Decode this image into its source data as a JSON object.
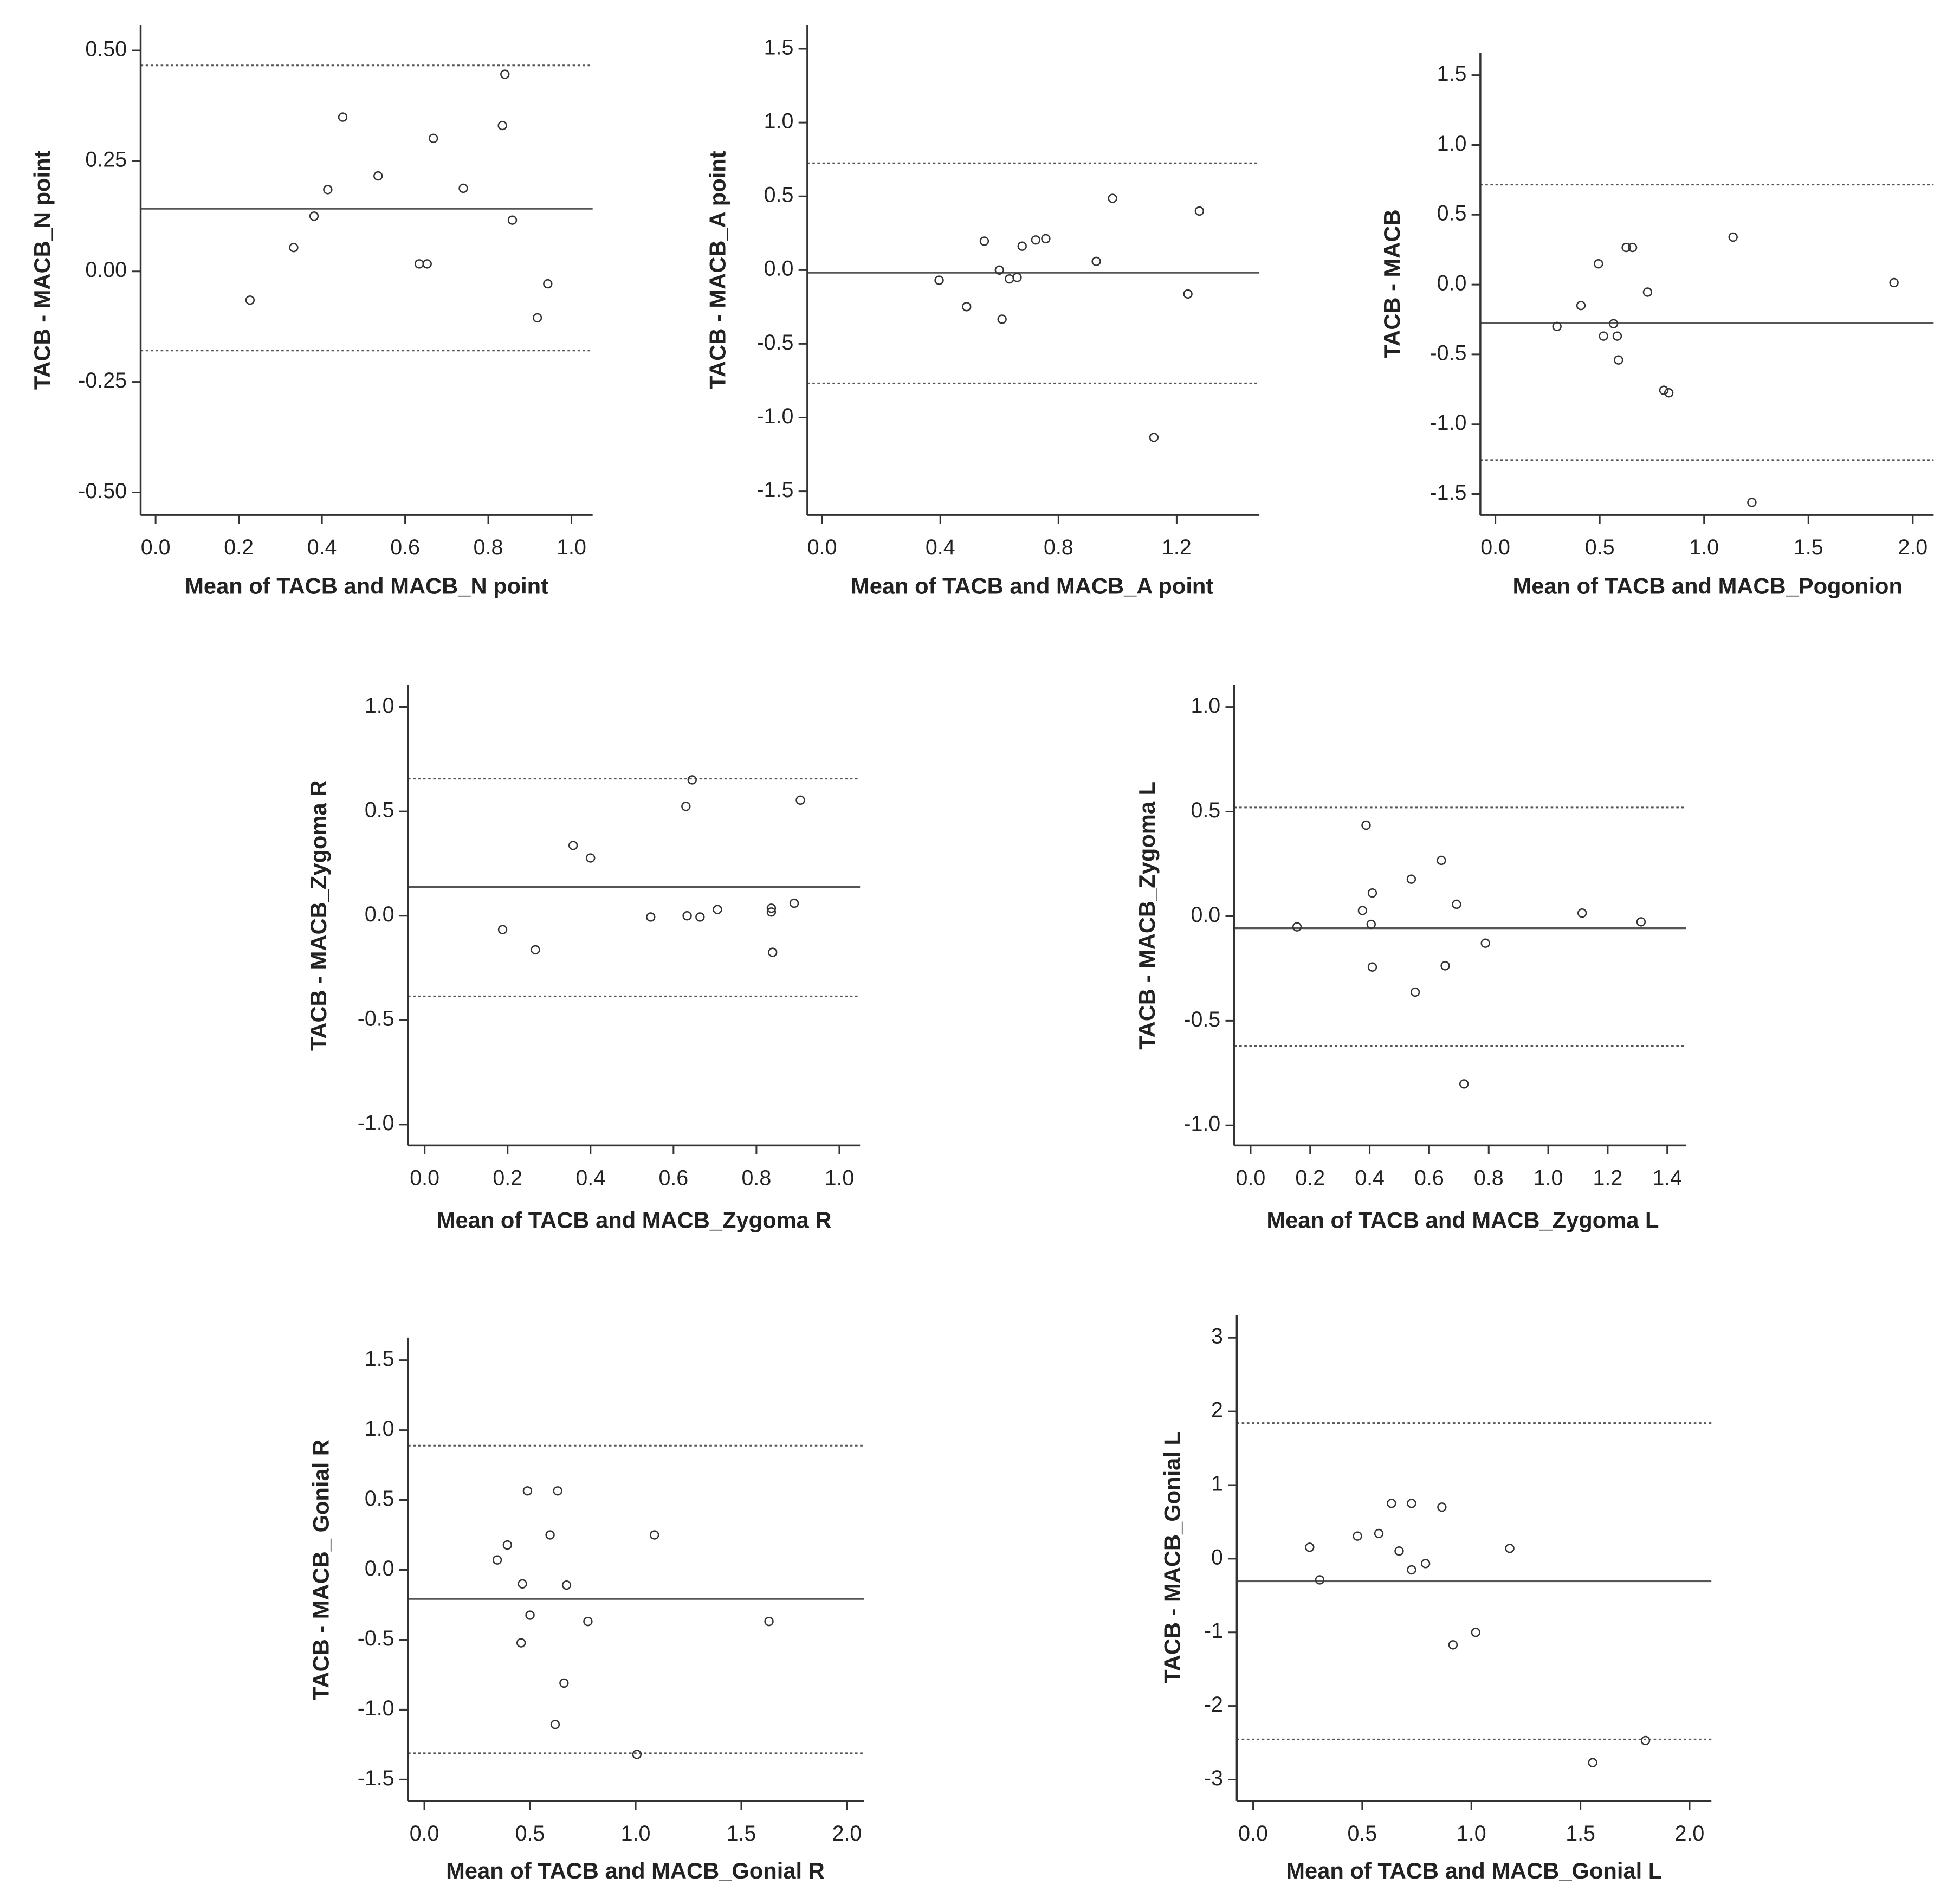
{
  "chart_data": [
    {
      "type": "scatter",
      "x_label": "Mean of TACB and MACB_N point",
      "y_label": "TACB - MACB_N point",
      "marker": "open-circle",
      "color": "#333333",
      "x": [
        0.227,
        0.332,
        0.381,
        0.414,
        0.45,
        0.535,
        0.634,
        0.653,
        0.668,
        0.74,
        0.834,
        0.84,
        0.858,
        0.918,
        0.943
      ],
      "y": [
        -0.065,
        0.054,
        0.125,
        0.185,
        0.349,
        0.216,
        0.017,
        0.017,
        0.301,
        0.188,
        0.33,
        0.446,
        0.116,
        -0.105,
        -0.028
      ],
      "xlim": [
        -0.036,
        1.051
      ],
      "ylim": [
        -0.551,
        0.557
      ],
      "xticks": [
        {
          "value": 0,
          "label": "0.0"
        },
        0.2,
        0.4,
        0.6,
        0.8,
        {
          "value": 1,
          "label": "1.0"
        }
      ],
      "yticks": [
        {
          "value": -0.5,
          "label": "-0.50"
        },
        -0.25,
        {
          "value": 0,
          "label": "0.00"
        },
        0.25,
        {
          "value": 0.5,
          "label": "0.50"
        }
      ],
      "reference_lines": [
        {
          "value": 0.142,
          "style": "solid"
        },
        {
          "value": 0.466,
          "style": "dotted"
        },
        {
          "value": -0.179,
          "style": "dotted"
        }
      ]
    },
    {
      "type": "scatter",
      "x_label": "Mean of TACB and MACB_A point",
      "y_label": "TACB - MACB_A point",
      "marker": "open-circle",
      "color": "#333333",
      "x": [
        0.396,
        0.489,
        0.549,
        0.6,
        0.609,
        0.634,
        0.66,
        0.677,
        0.723,
        0.757,
        0.928,
        0.983,
        1.123,
        1.238,
        1.277
      ],
      "y": [
        -0.069,
        -0.248,
        0.196,
        0.0,
        -0.333,
        -0.06,
        -0.05,
        0.162,
        0.204,
        0.213,
        0.059,
        0.486,
        -1.134,
        -0.162,
        0.4
      ],
      "xlim": [
        -0.05,
        1.48
      ],
      "ylim": [
        -1.66,
        1.66
      ],
      "xticks": [
        {
          "value": 0,
          "label": "0.0"
        },
        0.4,
        0.8,
        1.2
      ],
      "yticks": [
        -1.5,
        {
          "value": -1,
          "label": "-1.0"
        },
        -0.5,
        {
          "value": 0,
          "label": "0.0"
        },
        0.5,
        {
          "value": 1,
          "label": "1.0"
        },
        1.5
      ],
      "reference_lines": [
        {
          "value": -0.017,
          "style": "solid"
        },
        {
          "value": 0.724,
          "style": "dotted"
        },
        {
          "value": -0.768,
          "style": "dotted"
        }
      ]
    },
    {
      "type": "scatter",
      "x_label": "Mean of TACB and MACB_Pogonion",
      "y_label": "TACB - MACB",
      "marker": "open-circle",
      "color": "#333333",
      "x": [
        0.295,
        0.41,
        0.494,
        0.518,
        0.566,
        0.584,
        0.59,
        0.627,
        0.657,
        0.729,
        0.807,
        0.831,
        1.139,
        1.229,
        1.91
      ],
      "y": [
        -0.3,
        -0.15,
        0.149,
        -0.369,
        -0.28,
        -0.369,
        -0.54,
        0.266,
        0.266,
        -0.054,
        -0.757,
        -0.775,
        0.34,
        -1.56,
        0.014
      ],
      "xlim": [
        -0.072,
        2.1
      ],
      "ylim": [
        -1.65,
        1.66
      ],
      "xticks": [
        {
          "value": 0,
          "label": "0.0"
        },
        0.5,
        {
          "value": 1,
          "label": "1.0"
        },
        1.5,
        {
          "value": 2,
          "label": "2.0"
        }
      ],
      "yticks": [
        -1.5,
        {
          "value": -1,
          "label": "-1.0"
        },
        -0.5,
        {
          "value": 0,
          "label": "0.0"
        },
        0.5,
        {
          "value": 1,
          "label": "1.0"
        },
        1.5
      ],
      "reference_lines": [
        {
          "value": -0.275,
          "style": "solid"
        },
        {
          "value": 0.716,
          "style": "dotted"
        },
        {
          "value": -1.257,
          "style": "dotted"
        }
      ]
    },
    {
      "type": "scatter",
      "x_label": "Mean of TACB and MACB_Zygoma R",
      "y_label": "TACB - MACB_Zygoma R",
      "marker": "open-circle",
      "color": "#333333",
      "x": [
        0.188,
        0.267,
        0.358,
        0.4,
        0.545,
        0.63,
        0.645,
        0.633,
        0.664,
        0.706,
        0.836,
        0.836,
        0.839,
        0.891,
        0.906
      ],
      "y": [
        -0.066,
        -0.163,
        0.337,
        0.277,
        -0.006,
        0.524,
        0.651,
        0.0,
        -0.006,
        0.03,
        0.036,
        0.018,
        -0.175,
        0.06,
        0.554
      ],
      "xlim": [
        -0.04,
        1.05
      ],
      "ylim": [
        -1.1,
        1.108
      ],
      "xticks": [
        {
          "value": 0,
          "label": "0.0"
        },
        0.2,
        0.4,
        0.6,
        0.8,
        {
          "value": 1,
          "label": "1.0"
        }
      ],
      "yticks": [
        {
          "value": -1,
          "label": "-1.0"
        },
        -0.5,
        {
          "value": 0,
          "label": "0.0"
        },
        0.5,
        {
          "value": 1,
          "label": "1.0"
        }
      ],
      "reference_lines": [
        {
          "value": 0.139,
          "style": "solid"
        },
        {
          "value": 0.657,
          "style": "dotted"
        },
        {
          "value": -0.386,
          "style": "dotted"
        }
      ]
    },
    {
      "type": "scatter",
      "x_label": "Mean of TACB and MACB_Zygoma L",
      "y_label": "TACB - MACB_Zygoma L",
      "marker": "open-circle",
      "color": "#333333",
      "x": [
        0.156,
        0.376,
        0.388,
        0.409,
        0.405,
        0.409,
        0.54,
        0.553,
        0.641,
        0.654,
        0.692,
        0.717,
        0.789,
        1.114,
        1.312
      ],
      "y": [
        -0.051,
        0.027,
        0.435,
        0.111,
        -0.039,
        -0.243,
        0.177,
        -0.363,
        0.267,
        -0.237,
        0.057,
        -0.802,
        -0.129,
        0.015,
        -0.027
      ],
      "xlim": [
        -0.055,
        1.464
      ],
      "ylim": [
        -1.096,
        1.108
      ],
      "xticks": [
        {
          "value": 0,
          "label": "0.0"
        },
        0.2,
        0.4,
        0.6,
        0.8,
        {
          "value": 1,
          "label": "1.0"
        },
        1.2,
        1.4
      ],
      "yticks": [
        {
          "value": -1,
          "label": "-1.0"
        },
        -0.5,
        {
          "value": 0,
          "label": "0.0"
        },
        0.5,
        {
          "value": 1,
          "label": "1.0"
        }
      ],
      "reference_lines": [
        {
          "value": -0.057,
          "style": "solid"
        },
        {
          "value": 0.52,
          "style": "dotted"
        },
        {
          "value": -0.622,
          "style": "dotted"
        }
      ]
    },
    {
      "type": "scatter",
      "x_label": "Mean of TACB and MACB_Gonial R",
      "y_label": "TACB - MACB_ Gonial R",
      "marker": "open-circle",
      "color": "#333333",
      "x": [
        0.345,
        0.393,
        0.464,
        0.488,
        0.5,
        0.458,
        0.595,
        0.631,
        0.619,
        0.661,
        0.673,
        0.774,
        1.006,
        1.089,
        1.631
      ],
      "y": [
        0.071,
        0.178,
        -0.1,
        0.565,
        -0.324,
        -0.522,
        0.25,
        0.565,
        -1.106,
        -0.81,
        -0.109,
        -0.369,
        -1.32,
        0.25,
        -0.369
      ],
      "xlim": [
        -0.077,
        2.08
      ],
      "ylim": [
        -1.653,
        1.662
      ],
      "xticks": [
        {
          "value": 0,
          "label": "0.0"
        },
        0.5,
        {
          "value": 1,
          "label": "1.0"
        },
        1.5,
        {
          "value": 2,
          "label": "2.0"
        }
      ],
      "yticks": [
        -1.5,
        {
          "value": -1,
          "label": "-1.0"
        },
        -0.5,
        {
          "value": 0,
          "label": "0.0"
        },
        0.5,
        {
          "value": 1,
          "label": "1.0"
        },
        1.5
      ],
      "reference_lines": [
        {
          "value": -0.207,
          "style": "solid"
        },
        {
          "value": 0.889,
          "style": "dotted"
        },
        {
          "value": -1.312,
          "style": "dotted"
        }
      ]
    },
    {
      "type": "scatter",
      "x_label": "Mean of TACB and MACB_Gonial L",
      "y_label": "TACB - MACB_Gonial L",
      "marker": "open-circle",
      "color": "#333333",
      "x": [
        0.259,
        0.305,
        0.478,
        0.576,
        0.634,
        0.669,
        0.726,
        0.726,
        0.79,
        0.865,
        0.916,
        1.02,
        1.176,
        1.556,
        1.798
      ],
      "y": [
        0.155,
        -0.288,
        0.307,
        0.342,
        0.751,
        0.104,
        0.751,
        -0.152,
        -0.066,
        0.7,
        -1.17,
        -1.0,
        0.14,
        -2.77,
        -2.47
      ],
      "xlim": [
        -0.075,
        2.1
      ],
      "ylim": [
        -3.29,
        3.31
      ],
      "xticks": [
        {
          "value": 0,
          "label": "0.0"
        },
        0.5,
        {
          "value": 1,
          "label": "1.0"
        },
        1.5,
        {
          "value": 2,
          "label": "2.0"
        }
      ],
      "yticks": [
        -3,
        -2,
        -1,
        0,
        1,
        2,
        3
      ],
      "reference_lines": [
        {
          "value": -0.305,
          "style": "solid"
        },
        {
          "value": 1.842,
          "style": "dotted"
        },
        {
          "value": -2.455,
          "style": "dotted"
        }
      ]
    }
  ]
}
